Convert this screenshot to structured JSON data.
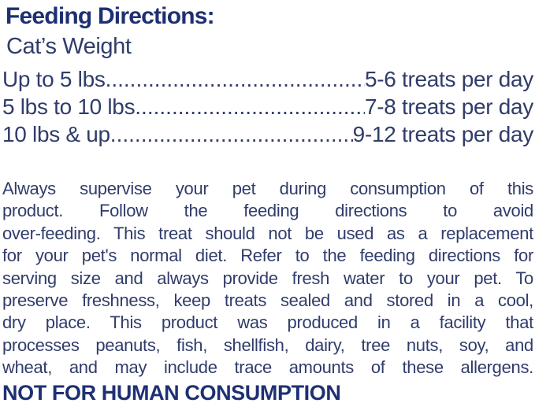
{
  "colors": {
    "heading": "#1e3073",
    "body": "#303c6b",
    "background": "#ffffff"
  },
  "heading": {
    "title": "Feeding Directions:"
  },
  "feeding": {
    "subheading": "Cat’s Weight",
    "leader_dots": "................................................................................",
    "rows": [
      {
        "left": "Up to 5 lbs",
        "right": "5-6 treats per day"
      },
      {
        "left": "5 lbs to 10 lbs",
        "right": "7-8 treats per day"
      },
      {
        "left": "10 lbs & up",
        "right": "9-12 treats per day"
      }
    ]
  },
  "paragraph": {
    "lines": [
      "Always supervise your pet during consumption of this",
      "product. Follow the feeding directions to avoid",
      "over-feeding. This treat should not be used as a replacement",
      "for your pet's normal diet. Refer to the feeding directions for",
      "serving size and always provide fresh water to your pet. To",
      "preserve freshness, keep treats sealed and stored in a cool,",
      "dry place. This product was produced in a facility that",
      "processes peanuts, fish, shellfish, dairy, tree nuts, soy, and",
      "wheat, and may include trace amounts of these allergens."
    ]
  },
  "warning": {
    "text": "NOT FOR HUMAN CONSUMPTION"
  }
}
